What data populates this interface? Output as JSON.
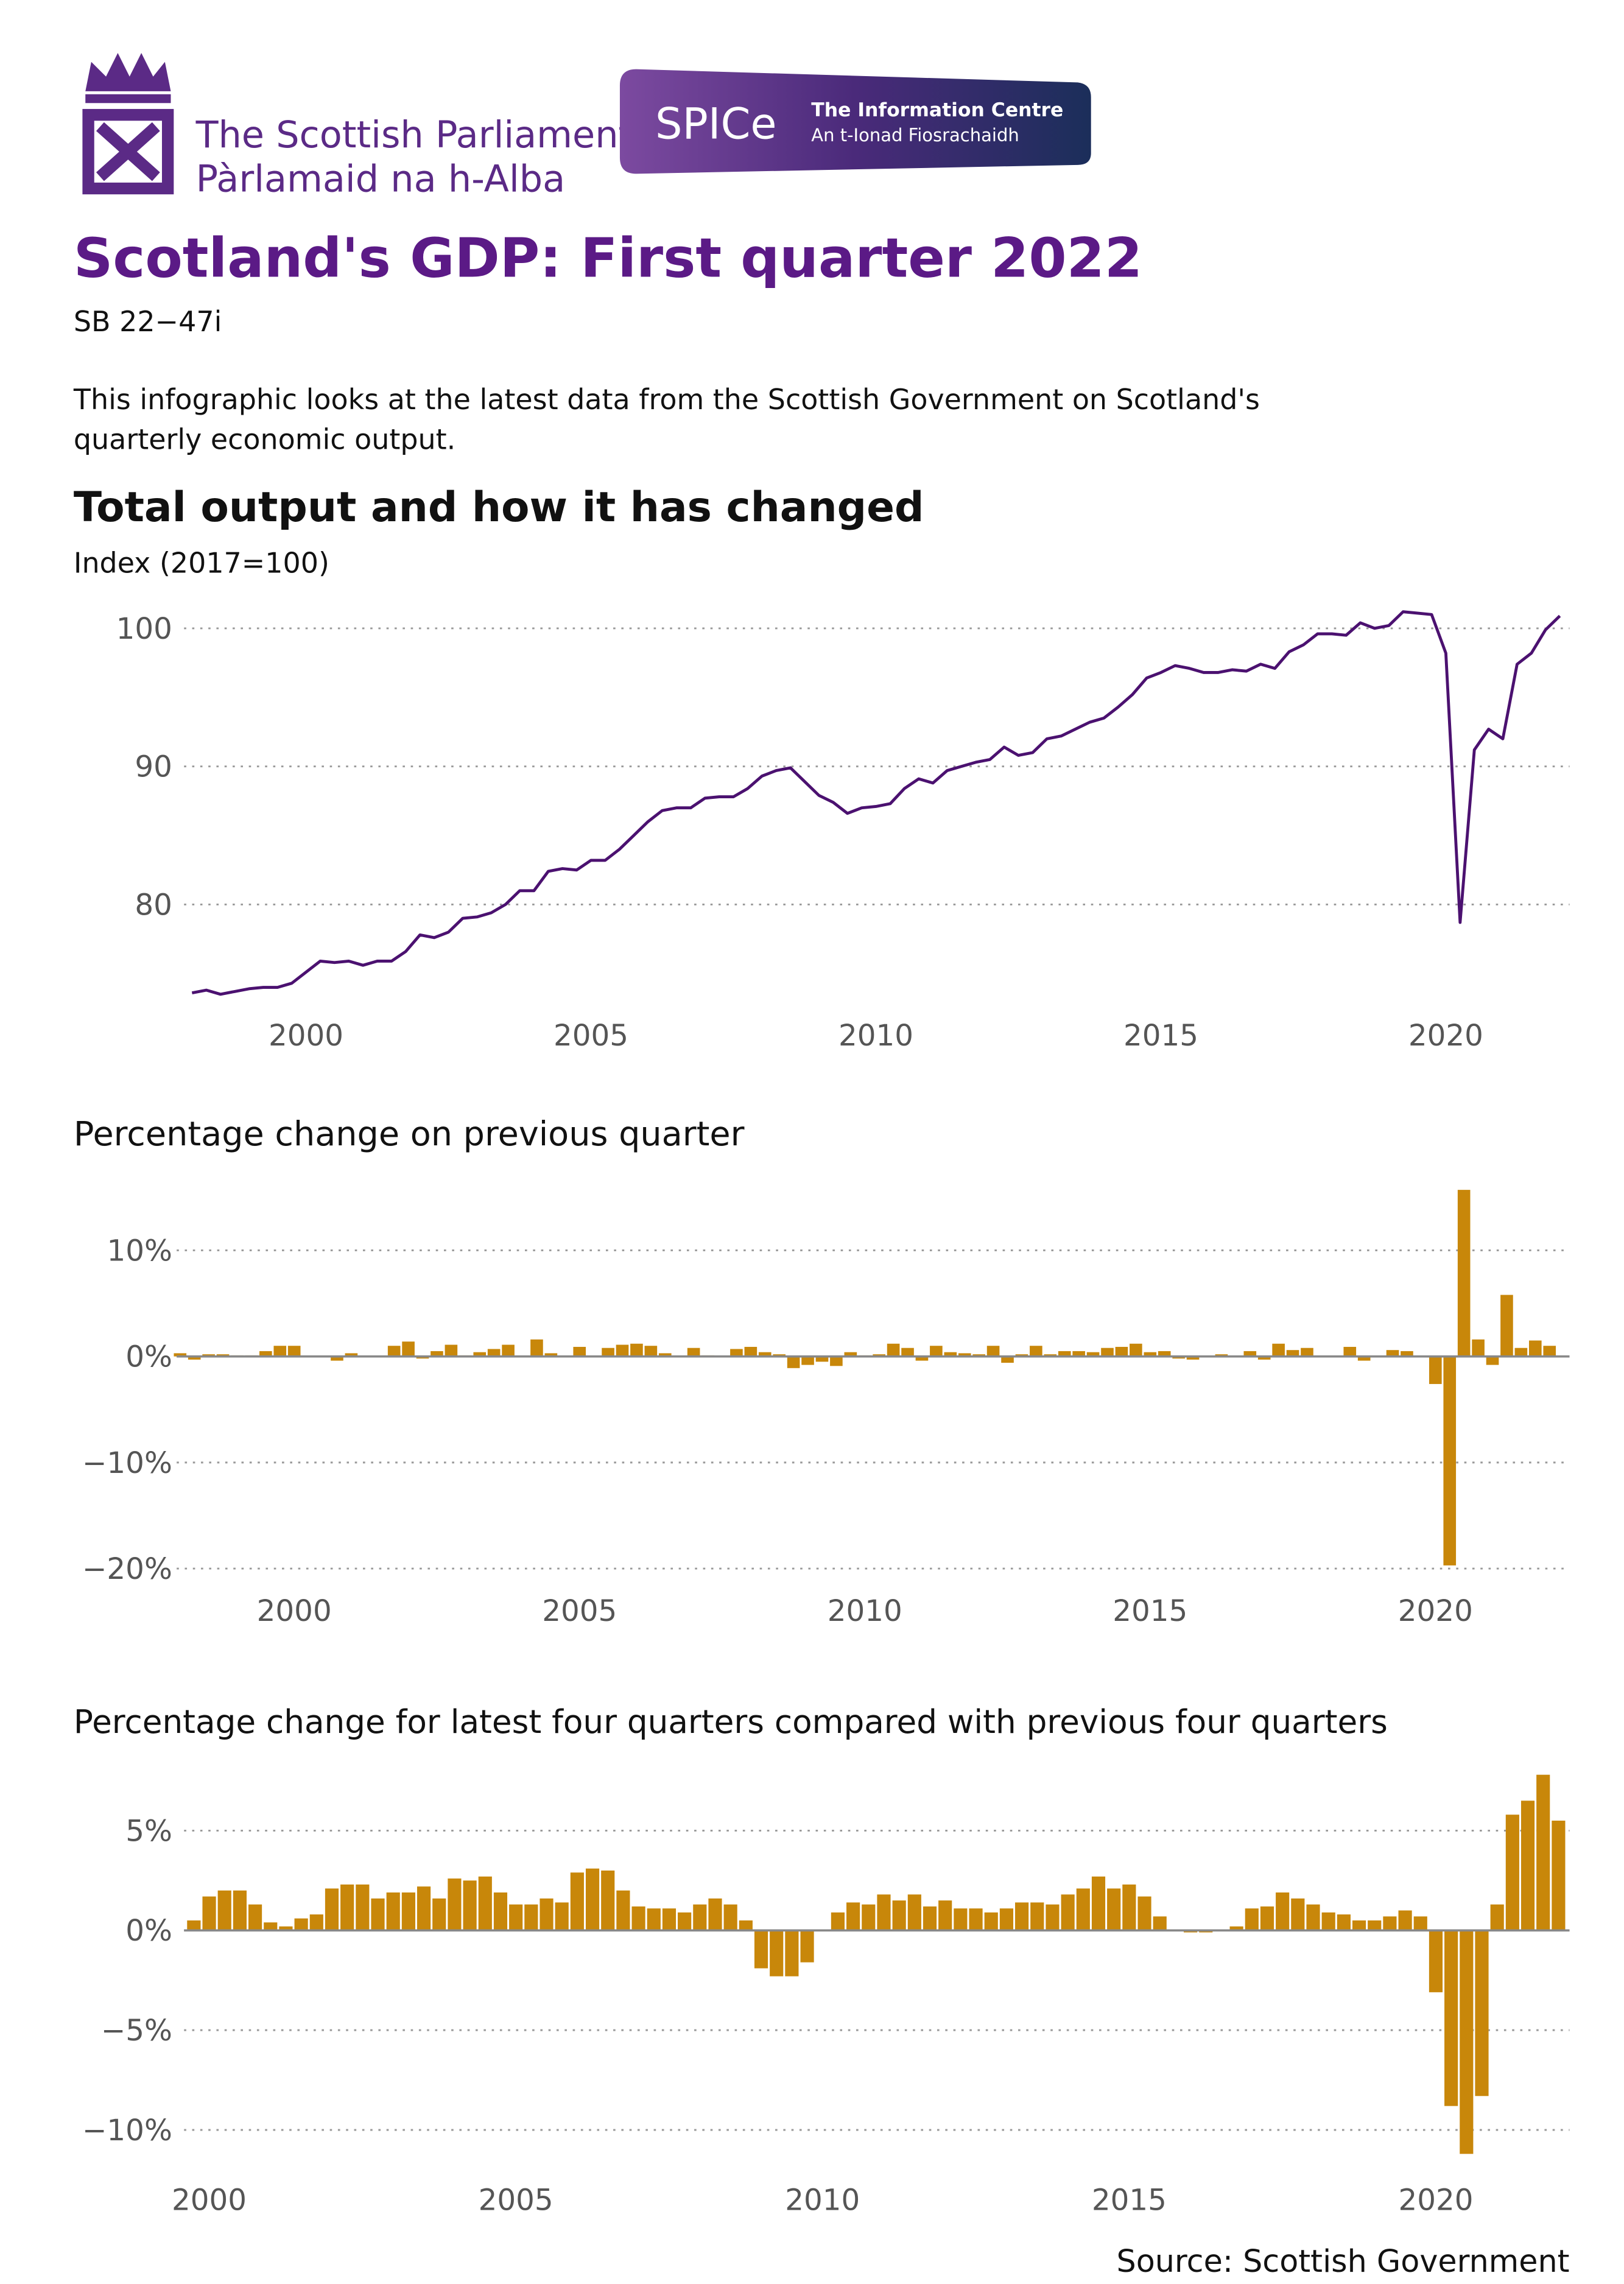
{
  "header": {
    "org_name": "The Scottish Parliament",
    "org_name_gaelic": "Pàrlamaid na h-Alba",
    "badge": "SPICe",
    "badge_line1": "The Information Centre",
    "badge_line2": "An t-Ionad Fiosrachaidh",
    "title": "Scotland's GDP: First quarter 2022",
    "reference": "SB 22−47i",
    "intro": [
      "This infographic looks at the latest data from the Scottish Government on Scotland's",
      "quarterly economic output."
    ]
  },
  "chart_data": [
    {
      "type": "line",
      "title": "Total output and how it has changed",
      "subtitle": "Index (2017=100)",
      "color": "#4b1170",
      "grid": true,
      "xlim": [
        1997.86,
        2022.17
      ],
      "xticks": [
        2000,
        2005,
        2010,
        2015,
        2020
      ],
      "ylim": [
        73,
        102
      ],
      "yticks": [
        80,
        90,
        100
      ],
      "x": [
        1998,
        1998.25,
        1998.5,
        1998.75,
        1999,
        1999.25,
        1999.5,
        1999.75,
        2000,
        2000.25,
        2000.5,
        2000.75,
        2001,
        2001.25,
        2001.5,
        2001.75,
        2002,
        2002.25,
        2002.5,
        2002.75,
        2003,
        2003.25,
        2003.5,
        2003.75,
        2004,
        2004.25,
        2004.5,
        2004.75,
        2005,
        2005.25,
        2005.5,
        2005.75,
        2006,
        2006.25,
        2006.5,
        2006.75,
        2007,
        2007.25,
        2007.5,
        2007.75,
        2008,
        2008.25,
        2008.5,
        2008.75,
        2009,
        2009.25,
        2009.5,
        2009.75,
        2010,
        2010.25,
        2010.5,
        2010.75,
        2011,
        2011.25,
        2011.5,
        2011.75,
        2012,
        2012.25,
        2012.5,
        2012.75,
        2013,
        2013.25,
        2013.5,
        2013.75,
        2014,
        2014.25,
        2014.5,
        2014.75,
        2015,
        2015.25,
        2015.5,
        2015.75,
        2016,
        2016.25,
        2016.5,
        2016.75,
        2017,
        2017.25,
        2017.5,
        2017.75,
        2018,
        2018.25,
        2018.5,
        2018.75,
        2019,
        2019.25,
        2019.5,
        2019.75,
        2020,
        2020.25,
        2020.5,
        2020.75,
        2021,
        2021.25,
        2021.5,
        2021.75,
        2022
      ],
      "values": [
        73.6,
        73.8,
        73.5,
        73.7,
        73.9,
        74.0,
        74.0,
        74.3,
        75.1,
        75.9,
        75.8,
        75.9,
        75.6,
        75.9,
        75.9,
        76.6,
        77.8,
        77.6,
        78.0,
        79.0,
        79.1,
        79.4,
        80.0,
        81.0,
        81.0,
        82.4,
        82.6,
        82.5,
        83.2,
        83.2,
        84.0,
        85.0,
        86.0,
        86.8,
        87.0,
        87.0,
        87.7,
        87.8,
        87.8,
        88.4,
        89.3,
        89.7,
        89.9,
        88.9,
        87.9,
        87.4,
        86.6,
        87.0,
        87.1,
        87.3,
        88.4,
        89.1,
        88.8,
        89.7,
        90.0,
        90.3,
        90.5,
        91.4,
        90.8,
        91.0,
        92.0,
        92.2,
        92.7,
        93.2,
        93.5,
        94.3,
        95.2,
        96.4,
        96.8,
        97.3,
        97.1,
        96.8,
        96.8,
        97.0,
        96.9,
        97.4,
        97.1,
        98.3,
        98.8,
        99.6,
        99.6,
        99.5,
        100.4,
        100.0,
        100.2,
        101.2,
        101.1,
        101.0,
        98.2,
        78.7,
        91.2,
        92.7,
        92.0,
        97.4,
        98.2,
        99.9,
        100.9
      ]
    },
    {
      "type": "bar",
      "title": "Percentage change on previous quarter",
      "color": "#c8870a",
      "grid": true,
      "xlim": [
        1997.94,
        2022.35
      ],
      "xticks": [
        2000,
        2005,
        2010,
        2015,
        2020
      ],
      "ylim": [
        -20.5,
        16
      ],
      "yticks": [
        {
          "value": 10,
          "label": "10%"
        },
        {
          "value": 0,
          "label": "0%"
        },
        {
          "value": -10,
          "label": "−10%"
        },
        {
          "value": -20,
          "label": "−20%"
        }
      ],
      "x": [
        1998,
        1998.25,
        1998.5,
        1998.75,
        1999,
        1999.25,
        1999.5,
        1999.75,
        2000,
        2000.25,
        2000.5,
        2000.75,
        2001,
        2001.25,
        2001.5,
        2001.75,
        2002,
        2002.25,
        2002.5,
        2002.75,
        2003,
        2003.25,
        2003.5,
        2003.75,
        2004,
        2004.25,
        2004.5,
        2004.75,
        2005,
        2005.25,
        2005.5,
        2005.75,
        2006,
        2006.25,
        2006.5,
        2006.75,
        2007,
        2007.25,
        2007.5,
        2007.75,
        2008,
        2008.25,
        2008.5,
        2008.75,
        2009,
        2009.25,
        2009.5,
        2009.75,
        2010,
        2010.25,
        2010.5,
        2010.75,
        2011,
        2011.25,
        2011.5,
        2011.75,
        2012,
        2012.25,
        2012.5,
        2012.75,
        2013,
        2013.25,
        2013.5,
        2013.75,
        2014,
        2014.25,
        2014.5,
        2014.75,
        2015,
        2015.25,
        2015.5,
        2015.75,
        2016,
        2016.25,
        2016.5,
        2016.75,
        2017,
        2017.25,
        2017.5,
        2017.75,
        2018,
        2018.25,
        2018.5,
        2018.75,
        2019,
        2019.25,
        2019.5,
        2019.75,
        2020,
        2020.25,
        2020.5,
        2020.75,
        2021,
        2021.25,
        2021.5,
        2021.75,
        2022
      ],
      "values": [
        0.3,
        -0.3,
        0.2,
        0.2,
        0.1,
        0.1,
        0.5,
        1.0,
        1.0,
        0.0,
        0.0,
        -0.4,
        0.3,
        0.0,
        0.0,
        1.0,
        1.4,
        -0.2,
        0.5,
        1.1,
        0.1,
        0.4,
        0.7,
        1.1,
        0.0,
        1.6,
        0.3,
        -0.1,
        0.9,
        0.0,
        0.8,
        1.1,
        1.2,
        1.0,
        0.3,
        0.0,
        0.8,
        0.1,
        0.0,
        0.7,
        0.9,
        0.4,
        0.2,
        -1.1,
        -0.8,
        -0.5,
        -0.9,
        0.4,
        0.1,
        0.2,
        1.2,
        0.8,
        -0.4,
        1.0,
        0.4,
        0.3,
        0.2,
        1.0,
        -0.6,
        0.2,
        1.0,
        0.2,
        0.5,
        0.5,
        0.4,
        0.8,
        0.9,
        1.2,
        0.4,
        0.5,
        -0.2,
        -0.3,
        0.0,
        0.2,
        -0.1,
        0.5,
        -0.3,
        1.2,
        0.6,
        0.8,
        0.0,
        -0.1,
        0.9,
        -0.4,
        0.0,
        0.6,
        0.5,
        -0.1,
        -2.6,
        -19.7,
        15.7,
        1.6,
        -0.8,
        5.8,
        0.8,
        1.5,
        1.0
      ]
    },
    {
      "type": "bar",
      "title": "Percentage change for latest four quarters compared with previous four quarters",
      "color": "#c8870a",
      "grid": true,
      "xlim": [
        1999.59,
        2022.18
      ],
      "xticks": [
        2000,
        2005,
        2010,
        2015,
        2020
      ],
      "ylim": [
        -11.5,
        8.2
      ],
      "yticks": [
        {
          "value": 5,
          "label": "5%"
        },
        {
          "value": 0,
          "label": "0%"
        },
        {
          "value": -5,
          "label": "−5%"
        },
        {
          "value": -10,
          "label": "−10%"
        }
      ],
      "x": [
        1999.75,
        2000,
        2000.25,
        2000.5,
        2000.75,
        2001,
        2001.25,
        2001.5,
        2001.75,
        2002,
        2002.25,
        2002.5,
        2002.75,
        2003,
        2003.25,
        2003.5,
        2003.75,
        2004,
        2004.25,
        2004.5,
        2004.75,
        2005,
        2005.25,
        2005.5,
        2005.75,
        2006,
        2006.25,
        2006.5,
        2006.75,
        2007,
        2007.25,
        2007.5,
        2007.75,
        2008,
        2008.25,
        2008.5,
        2008.75,
        2009,
        2009.25,
        2009.5,
        2009.75,
        2010,
        2010.25,
        2010.5,
        2010.75,
        2011,
        2011.25,
        2011.5,
        2011.75,
        2012,
        2012.25,
        2012.5,
        2012.75,
        2013,
        2013.25,
        2013.5,
        2013.75,
        2014,
        2014.25,
        2014.5,
        2014.75,
        2015,
        2015.25,
        2015.5,
        2015.75,
        2016,
        2016.25,
        2016.5,
        2016.75,
        2017,
        2017.25,
        2017.5,
        2017.75,
        2018,
        2018.25,
        2018.5,
        2018.75,
        2019,
        2019.25,
        2019.5,
        2019.75,
        2020,
        2020.25,
        2020.5,
        2020.75,
        2021,
        2021.25,
        2021.5,
        2021.75,
        2022
      ],
      "values": [
        0.5,
        1.7,
        2.0,
        2.0,
        1.3,
        0.4,
        0.2,
        0.6,
        0.8,
        2.1,
        2.3,
        2.3,
        1.6,
        1.9,
        1.9,
        2.2,
        1.6,
        2.6,
        2.5,
        2.7,
        1.9,
        1.3,
        1.3,
        1.6,
        1.4,
        2.9,
        3.1,
        3.0,
        2.0,
        1.2,
        1.1,
        1.1,
        0.9,
        1.3,
        1.6,
        1.3,
        0.5,
        -1.9,
        -2.3,
        -2.3,
        -1.6,
        0.0,
        0.9,
        1.4,
        1.3,
        1.8,
        1.5,
        1.8,
        1.2,
        1.5,
        1.1,
        1.1,
        0.9,
        1.1,
        1.4,
        1.4,
        1.3,
        1.8,
        2.1,
        2.7,
        2.1,
        2.3,
        1.7,
        0.7,
        0.0,
        -0.1,
        -0.1,
        0.0,
        0.2,
        1.1,
        1.2,
        1.9,
        1.6,
        1.3,
        0.9,
        0.8,
        0.5,
        0.5,
        0.7,
        1.0,
        0.7,
        -3.1,
        -8.8,
        -11.2,
        -8.3,
        1.3,
        5.8,
        6.5,
        7.8,
        5.5
      ]
    }
  ],
  "footer": {
    "source": "Source: Scottish Government"
  }
}
